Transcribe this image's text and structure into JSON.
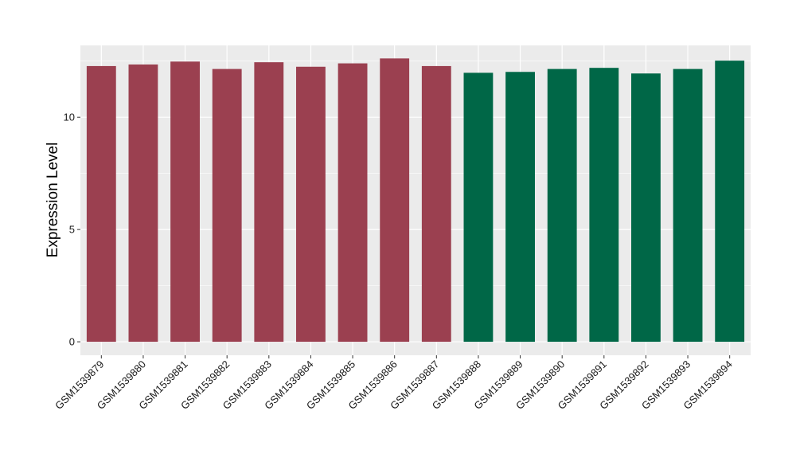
{
  "chart_data": {
    "type": "bar",
    "categories": [
      "GSM1539879",
      "GSM1539880",
      "GSM1539881",
      "GSM1539882",
      "GSM1539883",
      "GSM1539884",
      "GSM1539885",
      "GSM1539886",
      "GSM1539887",
      "GSM1539888",
      "GSM1539889",
      "GSM1539890",
      "GSM1539891",
      "GSM1539892",
      "GSM1539893",
      "GSM1539894"
    ],
    "values": [
      12.28,
      12.35,
      12.48,
      12.15,
      12.45,
      12.25,
      12.4,
      12.62,
      12.28,
      11.98,
      12.02,
      12.15,
      12.2,
      11.95,
      12.15,
      12.52
    ],
    "bar_colors": [
      "#9b4050",
      "#9b4050",
      "#9b4050",
      "#9b4050",
      "#9b4050",
      "#9b4050",
      "#9b4050",
      "#9b4050",
      "#9b4050",
      "#006747",
      "#006747",
      "#006747",
      "#006747",
      "#006747",
      "#006747",
      "#006747"
    ],
    "title": "",
    "xlabel": "",
    "ylabel": "Expression Level",
    "ylim": [
      -0.6,
      13.2
    ],
    "yticks": [
      0,
      5,
      10
    ],
    "ytick_labels": [
      "0",
      "5",
      "10"
    ],
    "grid": true,
    "panel_background": "#ebebeb",
    "gridline_color": "#ffffff"
  }
}
